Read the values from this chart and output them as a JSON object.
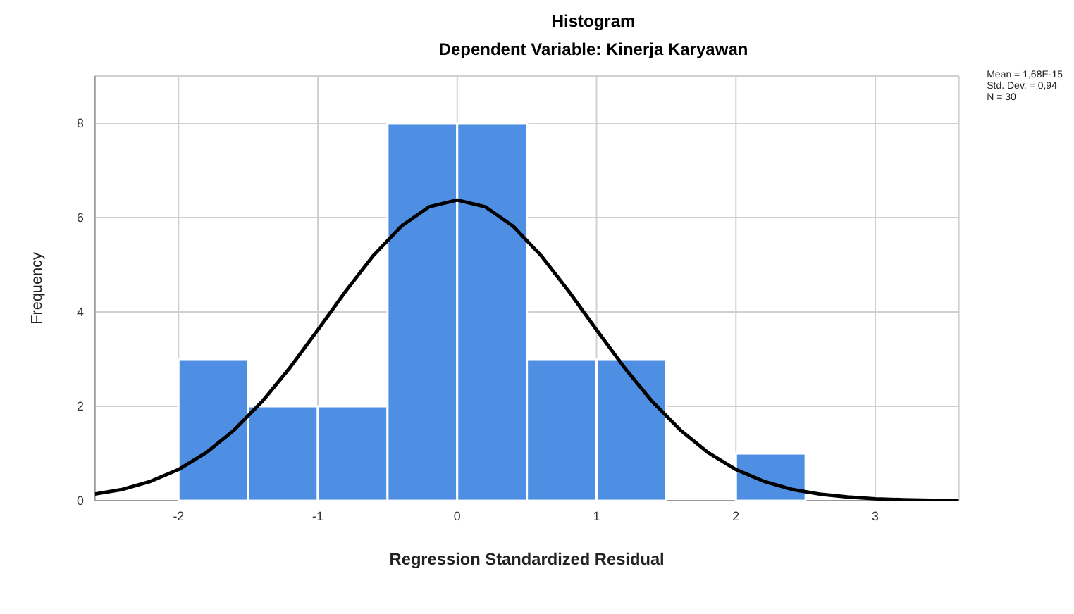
{
  "chart_data": {
    "type": "histogram",
    "title": "Histogram",
    "subtitle": "Dependent Variable: Kinerja Karyawan",
    "xlabel": "Regression Standardized Residual",
    "ylabel": "Frequency",
    "bins": [
      -2,
      -1.5,
      -1,
      -0.5,
      0,
      0.5,
      1,
      1.5,
      2,
      2.5
    ],
    "values": [
      3,
      2,
      2,
      8,
      8,
      3,
      3,
      0,
      1
    ],
    "color": "#4f8fe3",
    "series": [
      {
        "type": "line",
        "color": "#000000",
        "x": [
          -2.6,
          -2.4,
          -2.2,
          -2,
          -1.8,
          -1.6,
          -1.4,
          -1.2,
          -1,
          -0.8,
          -0.6,
          -0.4,
          -0.2,
          0,
          0.2,
          0.4,
          0.6,
          0.8,
          1,
          1.2,
          1.4,
          1.6,
          1.8,
          2,
          2.2,
          2.4,
          2.6,
          2.8,
          3,
          3.2,
          3.4,
          3.6
        ],
        "values": [
          0.14,
          0.24,
          0.41,
          0.66,
          1.02,
          1.5,
          2.1,
          2.82,
          3.62,
          4.44,
          5.2,
          5.82,
          6.23,
          6.37,
          6.23,
          5.82,
          5.2,
          4.44,
          3.62,
          2.82,
          2.1,
          1.5,
          1.02,
          0.66,
          0.41,
          0.24,
          0.14,
          0.08,
          0.04,
          0.02,
          0.01,
          0
        ]
      }
    ],
    "xlim": [
      -2.6,
      3.6
    ],
    "xticks": [
      -2,
      -1,
      0,
      1,
      2,
      3
    ],
    "ylim": [
      0,
      9
    ],
    "yticks": [
      0,
      2,
      4,
      6,
      8
    ],
    "grid": true,
    "annotations": [
      "Mean = 1,68E-15",
      "Std. Dev. = 0,94",
      "N = 30"
    ]
  }
}
